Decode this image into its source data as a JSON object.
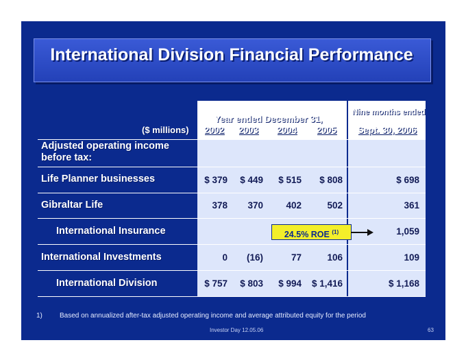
{
  "title": "International Division Financial Performance",
  "units_label": "($ millions)",
  "header": {
    "year_ended": "Year ended December 31,",
    "nine_months": "Nine months ended",
    "sept": "Sept. 30, 2006",
    "years": [
      "2002",
      "2003",
      "2004",
      "2005"
    ]
  },
  "rows": [
    {
      "label": "Adjusted operating income before tax:",
      "values": [
        "",
        "",
        "",
        ""
      ],
      "ytd": ""
    },
    {
      "label": "Life Planner businesses",
      "values": [
        "$ 379",
        "$ 449",
        "$ 515",
        "$ 808"
      ],
      "ytd": "$ 698"
    },
    {
      "label": "Gibraltar Life",
      "values": [
        "378",
        "370",
        "402",
        "502"
      ],
      "ytd": "361"
    },
    {
      "label": "International Insurance",
      "values": [
        "",
        "",
        "",
        ""
      ],
      "ytd": "1,059"
    },
    {
      "label": "International Investments",
      "values": [
        "0",
        "(16)",
        "77",
        "106"
      ],
      "ytd": "109"
    },
    {
      "label": "International Division",
      "values": [
        "$ 757",
        "$ 803",
        "$ 994",
        "$ 1,416"
      ],
      "ytd": "$ 1,168"
    }
  ],
  "roe": {
    "text": "24.5% ROE",
    "sup": "(1)"
  },
  "footnote": {
    "number": "1)",
    "text": "Based on annualized after-tax adjusted operating income and average attributed equity for the period"
  },
  "footer": {
    "center": "Investor Day 12.05.06",
    "page": "63"
  },
  "colors": {
    "slide_bg": "#0b2a8e",
    "table_bg": "#dde6fb",
    "roe_bg": "#f3ef2a"
  }
}
